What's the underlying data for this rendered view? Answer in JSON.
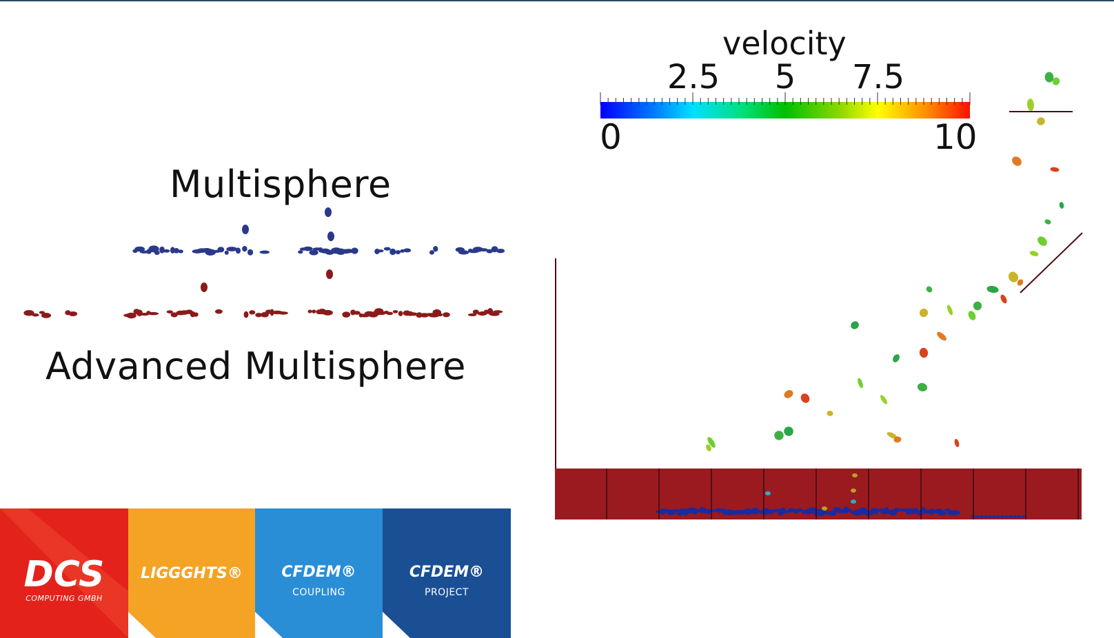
{
  "labels": {
    "multisphere": "Multisphere",
    "advanced_multisphere": "Advanced Multisphere"
  },
  "legend": {
    "title": "velocity",
    "ticks": [
      "2.5",
      "5",
      "7.5"
    ],
    "min": "0",
    "max": "10",
    "colormap": [
      "#0000ff",
      "#00e0ff",
      "#00c000",
      "#ffff00",
      "#ff1000"
    ]
  },
  "colors": {
    "multisphere_particles": "#2a3a8a",
    "advanced_particles": "#8b1a1a",
    "fluid_bed": "#9a1a1f",
    "settled_particles": "#1a2aa0",
    "frame_line": "#4a0a14"
  },
  "logos": {
    "dcs": {
      "title": "DCS",
      "subtitle": "COMPUTING GMBH",
      "color": "#e3231b"
    },
    "liggghts": {
      "title": "LIGGGHTS®",
      "color": "#f5a324"
    },
    "cfdem_coupling": {
      "title": "CFDEM®",
      "subtitle": "COUPLING",
      "color": "#2a8ed6"
    },
    "cfdem_project": {
      "title": "CFDEM®",
      "subtitle": "PROJECT",
      "color": "#1a4f94"
    }
  }
}
